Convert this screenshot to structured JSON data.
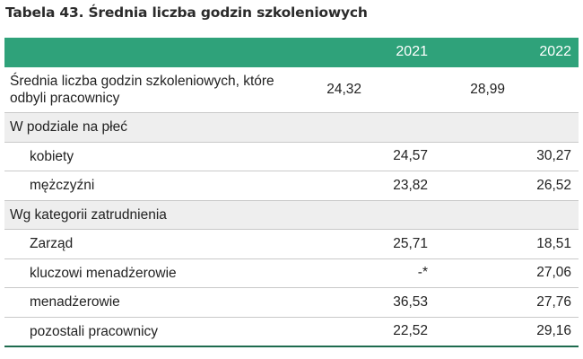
{
  "title": "Tabela 43. Średnia liczba godzin szkoleniowych",
  "header": {
    "label": "",
    "col1": "2021",
    "col2": "2022"
  },
  "rows": [
    {
      "label": "Średnia liczba godzin szkoleniowych, które odbyli pracownicy",
      "v2021": "24,32",
      "v2022": "28,99"
    },
    {
      "label": "W podziale na płeć",
      "v2021": "",
      "v2022": ""
    },
    {
      "label": "kobiety",
      "v2021": "24,57",
      "v2022": "30,27"
    },
    {
      "label": "mężczyźni",
      "v2021": "23,82",
      "v2022": "26,52"
    },
    {
      "label": "Wg kategorii zatrudnienia",
      "v2021": "",
      "v2022": ""
    },
    {
      "label": "Zarząd",
      "v2021": "25,71",
      "v2022": "18,51"
    },
    {
      "label": "kluczowi menadżerowie",
      "v2021": "-*",
      "v2022": "27,06"
    },
    {
      "label": "menadżerowie",
      "v2021": "36,53",
      "v2022": "27,76"
    },
    {
      "label": "pozostali pracownicy",
      "v2021": "22,52",
      "v2022": "29,16"
    }
  ],
  "colors": {
    "header_bg": "#2fa27a",
    "section_bg": "#eeeeee",
    "bottom_rule": "#1e6b4e"
  }
}
